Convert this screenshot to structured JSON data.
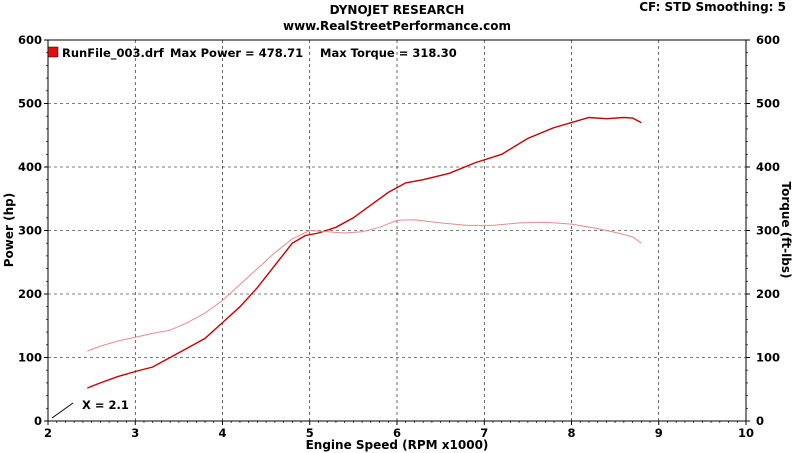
{
  "header": {
    "title": "DYNOJET RESEARCH",
    "subtitle": "www.RealStreetPerformance.com",
    "settings": "CF: STD  Smoothing: 5"
  },
  "colors": {
    "power": "#cc0000",
    "torque": "#e88a8a",
    "legend_swatch": "#dd1111",
    "grid": "#000000"
  },
  "chart_data": {
    "type": "line",
    "xlabel": "Engine Speed (RPM x1000)",
    "ylabel": "Power (hp)",
    "y2label": "Torque (ft-lbs)",
    "xlim": [
      2,
      10
    ],
    "ylim": [
      0,
      600
    ],
    "y2lim": [
      0,
      600
    ],
    "x_ticks": [
      "2",
      "3",
      "4",
      "5",
      "6",
      "7",
      "8",
      "9",
      "10"
    ],
    "y_ticks": [
      "0",
      "100",
      "200",
      "300",
      "400",
      "500",
      "600"
    ],
    "y2_ticks": [
      "0",
      "100",
      "200",
      "300",
      "400",
      "500",
      "600"
    ],
    "grid": true,
    "legend": {
      "position": "top-left",
      "file": "RunFile_003.drf",
      "max_power": "Max Power = 478.71",
      "max_torque": "Max Torque = 318.30"
    },
    "annotation": "X = 2.1",
    "series": [
      {
        "axis": "left",
        "x": [
          2.45,
          2.6,
          2.8,
          3.0,
          3.2,
          3.4,
          3.6,
          3.8,
          4.0,
          4.2,
          4.4,
          4.6,
          4.8,
          4.95,
          5.1,
          5.3,
          5.5,
          5.7,
          5.9,
          6.1,
          6.3,
          6.6,
          6.9,
          7.2,
          7.5,
          7.8,
          8.0,
          8.2,
          8.4,
          8.6,
          8.7,
          8.8
        ],
        "values": [
          52,
          60,
          70,
          78,
          85,
          100,
          115,
          130,
          155,
          180,
          210,
          245,
          280,
          292,
          296,
          305,
          320,
          340,
          360,
          375,
          380,
          390,
          407,
          420,
          445,
          462,
          470,
          478,
          476,
          478,
          477,
          470
        ]
      },
      {
        "axis": "right",
        "x": [
          2.45,
          2.6,
          2.8,
          3.0,
          3.2,
          3.4,
          3.6,
          3.8,
          4.0,
          4.2,
          4.4,
          4.6,
          4.8,
          5.0,
          5.2,
          5.4,
          5.6,
          5.8,
          6.0,
          6.2,
          6.5,
          6.8,
          7.1,
          7.4,
          7.7,
          8.0,
          8.3,
          8.5,
          8.7,
          8.8
        ],
        "values": [
          110,
          118,
          126,
          132,
          138,
          143,
          155,
          170,
          190,
          215,
          240,
          265,
          287,
          300,
          298,
          296,
          298,
          305,
          316,
          317,
          312,
          308,
          308,
          312,
          313,
          310,
          303,
          297,
          290,
          280
        ]
      }
    ]
  }
}
